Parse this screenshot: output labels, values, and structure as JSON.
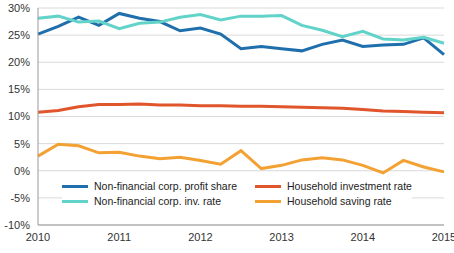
{
  "chart_data": {
    "type": "line",
    "categories": [
      "2010",
      null,
      null,
      null,
      "2011",
      null,
      null,
      null,
      "2012",
      null,
      null,
      null,
      "2013",
      null,
      null,
      null,
      "2014",
      null,
      null,
      null,
      "2015"
    ],
    "series": [
      {
        "name": "Non-financial corp. profit share",
        "color": "#1f6fad",
        "values": [
          25.2,
          26.6,
          28.3,
          26.8,
          29.0,
          28.1,
          27.5,
          25.8,
          26.3,
          25.2,
          22.5,
          22.9,
          22.5,
          22.1,
          23.3,
          24.1,
          22.9,
          23.2,
          23.3,
          24.5,
          21.4
        ]
      },
      {
        "name": "Non-financial corp. inv. rate",
        "color": "#62d3c9",
        "values": [
          28.1,
          28.5,
          27.4,
          27.6,
          26.2,
          27.2,
          27.4,
          28.3,
          28.8,
          27.8,
          28.5,
          28.5,
          28.6,
          26.8,
          25.9,
          24.7,
          25.7,
          24.3,
          24.1,
          24.6,
          23.5
        ]
      },
      {
        "name": "Household investment rate",
        "color": "#e0552b",
        "values": [
          10.8,
          11.1,
          11.8,
          12.2,
          12.2,
          12.3,
          12.1,
          12.1,
          12.0,
          12.0,
          11.9,
          11.9,
          11.8,
          11.7,
          11.6,
          11.5,
          11.3,
          11.0,
          10.9,
          10.8,
          10.7
        ]
      },
      {
        "name": "Household saving rate",
        "color": "#f4a133",
        "values": [
          2.7,
          4.9,
          4.6,
          3.3,
          3.4,
          2.7,
          2.2,
          2.5,
          1.9,
          1.2,
          3.7,
          0.4,
          1.0,
          2.0,
          2.4,
          2.0,
          1.0,
          -0.4,
          1.9,
          0.7,
          -0.2
        ]
      }
    ],
    "ylim": [
      -10,
      30
    ],
    "yticks": [
      {
        "value": -10,
        "label": "-10%"
      },
      {
        "value": -5,
        "label": "-5%"
      },
      {
        "value": 0,
        "label": "0%"
      },
      {
        "value": 5,
        "label": "5%"
      },
      {
        "value": 10,
        "label": "10%"
      },
      {
        "value": 15,
        "label": "15%"
      },
      {
        "value": 20,
        "label": "20%"
      },
      {
        "value": 25,
        "label": "25%"
      },
      {
        "value": 30,
        "label": "30%"
      }
    ],
    "grid": true,
    "legend": "lower left"
  }
}
